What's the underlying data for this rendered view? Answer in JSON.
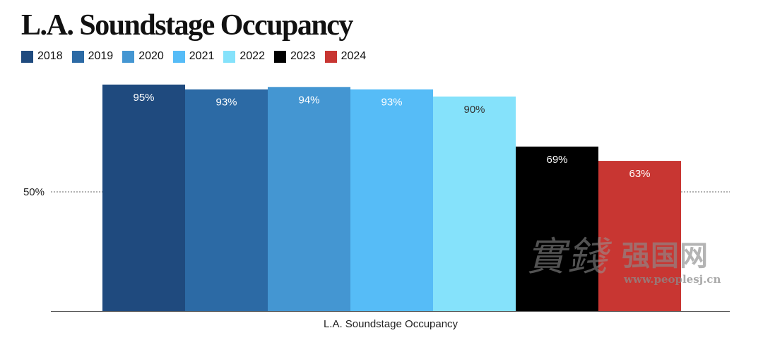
{
  "title": "L.A. Soundstage Occupancy",
  "legend": [
    {
      "label": "2018",
      "color": "#1f4a7e"
    },
    {
      "label": "2019",
      "color": "#2c6aa5"
    },
    {
      "label": "2020",
      "color": "#4496d2"
    },
    {
      "label": "2021",
      "color": "#56bcf7"
    },
    {
      "label": "2022",
      "color": "#85e2fb"
    },
    {
      "label": "2023",
      "color": "#000000"
    },
    {
      "label": "2024",
      "color": "#c83632"
    }
  ],
  "chart_data": {
    "type": "bar",
    "title": "L.A. Soundstage Occupancy",
    "xlabel": "L.A. Soundstage Occupancy",
    "ylabel": "",
    "ylim": [
      0,
      100
    ],
    "reference_line": {
      "value": 50,
      "label": "50%"
    },
    "categories": [
      "2018",
      "2019",
      "2020",
      "2021",
      "2022",
      "2023",
      "2024"
    ],
    "values": [
      95,
      93,
      94,
      93,
      90,
      69,
      63
    ],
    "data_labels": [
      "95%",
      "93%",
      "94%",
      "93%",
      "90%",
      "69%",
      "63%"
    ],
    "colors": [
      "#1f4a7e",
      "#2c6aa5",
      "#4496d2",
      "#56bcf7",
      "#85e2fb",
      "#000000",
      "#c83632"
    ],
    "label_color": "#ffffff",
    "dark_label_for_light_bar": "#333333",
    "legend_position": "top-left"
  },
  "watermark": {
    "chars": "實錢",
    "site": "强国网",
    "url": "www.peoplesj.cn"
  }
}
